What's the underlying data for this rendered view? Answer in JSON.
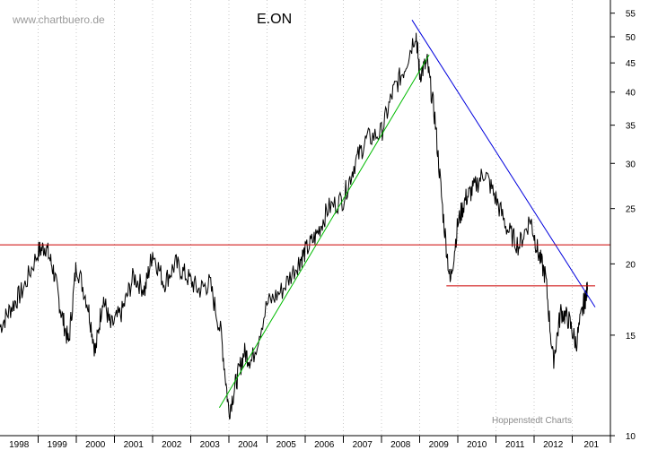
{
  "chart_data": {
    "type": "line",
    "title": "E.ON",
    "watermark": "www.chartbuero.de",
    "credit": "Hoppenstedt Charts",
    "y_scale": "log",
    "ylim": [
      10,
      58
    ],
    "y_ticks": [
      10,
      15,
      20,
      25,
      30,
      35,
      40,
      45,
      50,
      55
    ],
    "x_ticks": [
      "1998",
      "1999",
      "2000",
      "2001",
      "2002",
      "2003",
      "2004",
      "2005",
      "2006",
      "2007",
      "2008",
      "2009",
      "2010",
      "2011",
      "2012",
      "201"
    ],
    "xlim": [
      1997,
      2013
    ],
    "grid": "vertical dotted at year boundaries",
    "series": [
      {
        "color": "#000000",
        "x": [
          1997.0,
          1997.3,
          1997.6,
          1998.0,
          1998.2,
          1998.4,
          1998.6,
          1998.8,
          1999.0,
          1999.3,
          1999.5,
          1999.7,
          1999.9,
          2000.2,
          2000.5,
          2000.8,
          2001.0,
          2001.3,
          2001.6,
          2001.9,
          2002.2,
          2002.5,
          2002.8,
          2003.0,
          2003.2,
          2003.4,
          2003.6,
          2004.0,
          2004.4,
          2004.8,
          2005.0,
          2005.3,
          2005.6,
          2006.0,
          2006.3,
          2006.6,
          2007.0,
          2007.3,
          2007.6,
          2007.9,
          2008.0,
          2008.2,
          2008.4,
          2008.6,
          2008.8,
          2009.0,
          2009.2,
          2009.4,
          2009.7,
          2010.0,
          2010.3,
          2010.6,
          2010.9,
          2011.1,
          2011.3,
          2011.5,
          2011.7,
          2011.9,
          2012.1,
          2012.3,
          2012.4
        ],
        "y": [
          15.5,
          16.8,
          18.0,
          21.0,
          21.5,
          19.5,
          16.5,
          14.5,
          20.0,
          17.0,
          14.0,
          17.5,
          15.5,
          16.5,
          19.0,
          18.0,
          21.0,
          18.5,
          20.0,
          19.0,
          18.0,
          18.5,
          15.0,
          11.0,
          12.5,
          14.0,
          13.5,
          17.0,
          18.0,
          20.0,
          21.0,
          22.5,
          25.0,
          26.0,
          30.0,
          33.0,
          34.0,
          40.0,
          44.0,
          51.0,
          43.0,
          45.0,
          36.0,
          25.0,
          18.5,
          23.5,
          26.0,
          27.0,
          29.0,
          26.0,
          23.0,
          21.5,
          24.0,
          21.0,
          19.0,
          13.5,
          16.5,
          16.0,
          14.5,
          17.0,
          18.0
        ]
      },
      {
        "name": "",
        "color": "#00bb00",
        "x": [
          2002.75,
          2008.25
        ],
        "y": [
          11.2,
          46.5
        ]
      },
      {
        "name": "",
        "color": "#0000dd",
        "x": [
          2007.8,
          2012.6
        ],
        "y": [
          53.5,
          16.8
        ]
      },
      {
        "name": "",
        "color": "#cc0000",
        "x": [
          1997.0,
          2013.0
        ],
        "y": [
          21.6,
          21.6
        ]
      },
      {
        "name": "",
        "color": "#cc0000",
        "x": [
          2008.7,
          2012.6
        ],
        "y": [
          18.3,
          18.3
        ]
      }
    ]
  }
}
